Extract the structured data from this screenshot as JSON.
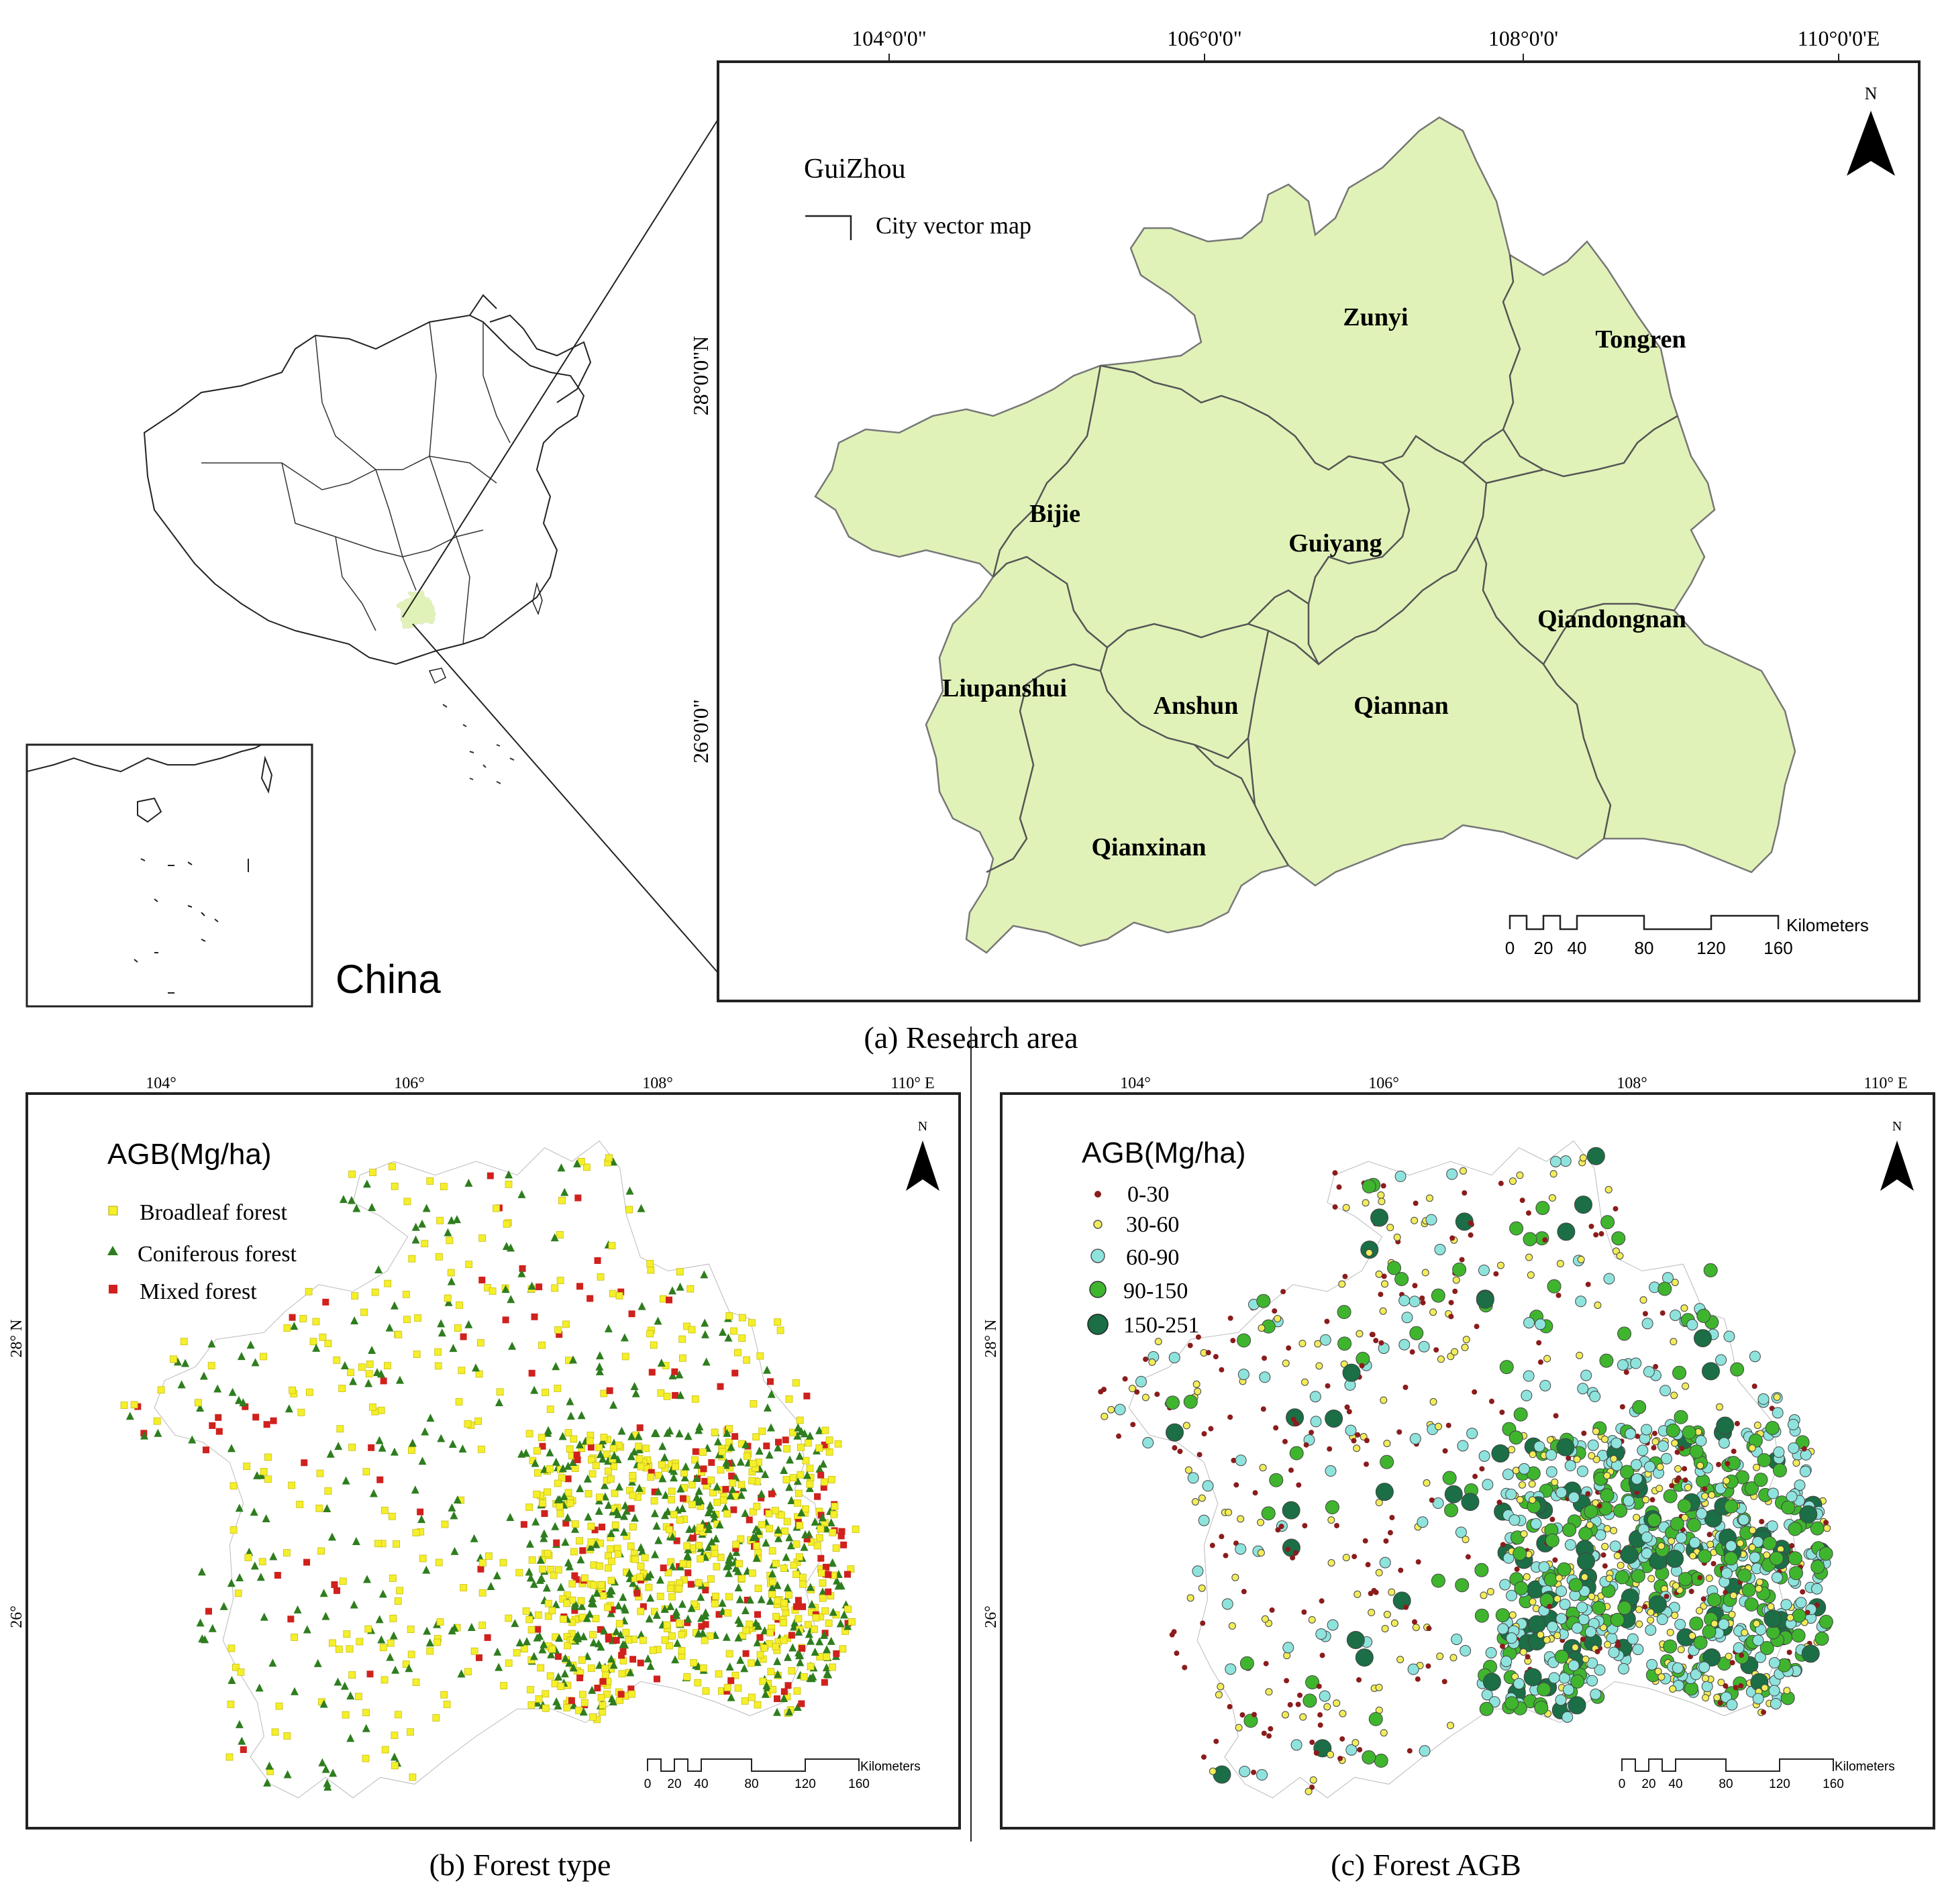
{
  "panel_a": {
    "caption": "(a) Research area",
    "title": "GuiZhou",
    "legend_label": "City vector map",
    "china_label": "China",
    "north": "N",
    "lon_ticks": [
      "104°0'0\"",
      "106°0'0\"",
      "108°0'0'",
      "110°0'0'E"
    ],
    "lat_ticks": [
      "28°0'0\"N",
      "26°0'0\""
    ],
    "cities": [
      "Zunyi",
      "Tongren",
      "Bijie",
      "Guiyang",
      "Qiandongnan",
      "Liupanshui",
      "Anshun",
      "Qiannan",
      "Qianxinan"
    ],
    "scale_unit": "Kilometers",
    "scale_ticks": [
      "0",
      "20",
      "40",
      "80",
      "120",
      "160"
    ],
    "region_fill": "#e1f2b8"
  },
  "panel_b": {
    "caption": "(b) Forest type",
    "title": "AGB(Mg/ha)",
    "north": "N",
    "lon_ticks": [
      "104°",
      "106°",
      "108°",
      "110° E"
    ],
    "lat_ticks": [
      "28° N",
      "26°"
    ],
    "legend": [
      {
        "label": "Broadleaf forest",
        "color": "#f5ef2a",
        "symbol": "square"
      },
      {
        "label": "Coniferous forest",
        "color": "#2e7d1e",
        "symbol": "triangle"
      },
      {
        "label": "Mixed forest",
        "color": "#d0211d",
        "symbol": "square"
      }
    ],
    "scale_unit": "Kilometers",
    "scale_ticks": [
      "0",
      "20",
      "40",
      "80",
      "120",
      "160"
    ]
  },
  "panel_c": {
    "caption": "(c) Forest AGB",
    "title": "AGB(Mg/ha)",
    "north": "N",
    "lon_ticks": [
      "104°",
      "106°",
      "108°",
      "110° E"
    ],
    "lat_ticks": [
      "28° N",
      "26°"
    ],
    "legend": [
      {
        "label": "0-30",
        "color": "#8b1c1c"
      },
      {
        "label": "30-60",
        "color": "#f2ec5a"
      },
      {
        "label": "60-90",
        "color": "#8fe3dd"
      },
      {
        "label": "90-150",
        "color": "#3fb52e"
      },
      {
        "label": "150-251",
        "color": "#1b6e45"
      }
    ],
    "scale_unit": "Kilometers",
    "scale_ticks": [
      "0",
      "20",
      "40",
      "80",
      "120",
      "160"
    ]
  }
}
